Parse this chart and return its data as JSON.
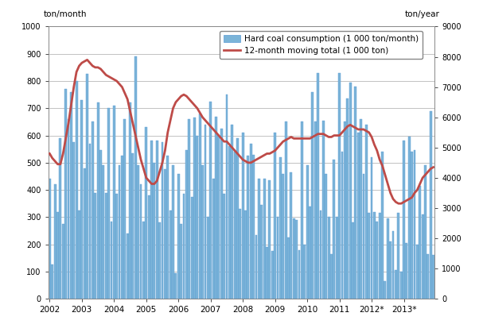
{
  "ylabel_left": "ton/month",
  "ylabel_right": "ton/year",
  "ylim_left": [
    0,
    1000
  ],
  "ylim_right": [
    0,
    9000
  ],
  "yticks_left": [
    0,
    100,
    200,
    300,
    400,
    500,
    600,
    700,
    800,
    900,
    1000
  ],
  "yticks_right": [
    0,
    1000,
    2000,
    3000,
    4000,
    5000,
    6000,
    7000,
    8000,
    9000
  ],
  "bar_color": "#7BB4D8",
  "bar_edge_color": "#5B9BD5",
  "line_color": "#BE4B48",
  "legend_bar": "Hard coal consumption (1 000 ton/month)",
  "legend_line": "12-month moving total (1 000 ton)",
  "bar_data": [
    440,
    125,
    420,
    320,
    590,
    275,
    770,
    660,
    760,
    575,
    800,
    325,
    730,
    480,
    825,
    570,
    650,
    390,
    720,
    545,
    490,
    390,
    700,
    285,
    710,
    385,
    490,
    525,
    660,
    240,
    720,
    535,
    890,
    490,
    420,
    285,
    630,
    380,
    580,
    500,
    580,
    280,
    575,
    475,
    525,
    325,
    490,
    95,
    460,
    275,
    385,
    545,
    660,
    375,
    665,
    600,
    680,
    490,
    640,
    300,
    725,
    440,
    670,
    600,
    625,
    385,
    750,
    560,
    640,
    540,
    590,
    330,
    610,
    325,
    525,
    570,
    530,
    235,
    440,
    345,
    440,
    190,
    435,
    175,
    610,
    300,
    520,
    460,
    650,
    225,
    465,
    295,
    290,
    180,
    650,
    200,
    490,
    340,
    760,
    650,
    830,
    325,
    655,
    460,
    300,
    165,
    510,
    300,
    830,
    540,
    650,
    735,
    795,
    280,
    780,
    610,
    660,
    460,
    640,
    315,
    520,
    320,
    285,
    315,
    540,
    65,
    295,
    210,
    250,
    105,
    315,
    100,
    580,
    205,
    595,
    540,
    545,
    200,
    415,
    310,
    490,
    165,
    690,
    160
  ],
  "line_data_values": [
    4800,
    4650,
    4550,
    4450,
    4450,
    4800,
    5300,
    5800,
    6400,
    7000,
    7500,
    7700,
    7800,
    7850,
    7900,
    7800,
    7700,
    7650,
    7650,
    7600,
    7500,
    7400,
    7350,
    7300,
    7250,
    7200,
    7100,
    7000,
    6800,
    6600,
    6200,
    5800,
    5400,
    5000,
    4600,
    4300,
    4000,
    3900,
    3800,
    3800,
    3900,
    4200,
    4500,
    4900,
    5500,
    5900,
    6300,
    6500,
    6600,
    6700,
    6750,
    6700,
    6600,
    6500,
    6400,
    6300,
    6150,
    6000,
    5900,
    5800,
    5700,
    5600,
    5500,
    5400,
    5300,
    5200,
    5200,
    5100,
    5000,
    4900,
    4800,
    4700,
    4600,
    4550,
    4500,
    4500,
    4550,
    4600,
    4650,
    4700,
    4750,
    4800,
    4800,
    4850,
    4900,
    5000,
    5100,
    5200,
    5250,
    5300,
    5350,
    5300,
    5300,
    5300,
    5300,
    5300,
    5300,
    5300,
    5350,
    5400,
    5450,
    5450,
    5450,
    5400,
    5350,
    5350,
    5400,
    5400,
    5400,
    5500,
    5600,
    5700,
    5750,
    5700,
    5650,
    5600,
    5600,
    5600,
    5550,
    5500,
    5350,
    5100,
    4900,
    4600,
    4400,
    4100,
    3800,
    3500,
    3300,
    3200,
    3150,
    3150,
    3200,
    3250,
    3300,
    3350,
    3500,
    3600,
    3800,
    4000,
    4100,
    4200,
    4300,
    4350
  ],
  "x_tick_labels": [
    "2002",
    "2003",
    "2004",
    "2005",
    "2006",
    "2007",
    "2008",
    "2009",
    "2010",
    "2011",
    "2012*",
    "2013*"
  ],
  "figsize": [
    6.07,
    4.18
  ],
  "dpi": 100,
  "background_color": "#FFFFFF",
  "grid_color": "#AAAAAA",
  "spine_color": "#888888"
}
